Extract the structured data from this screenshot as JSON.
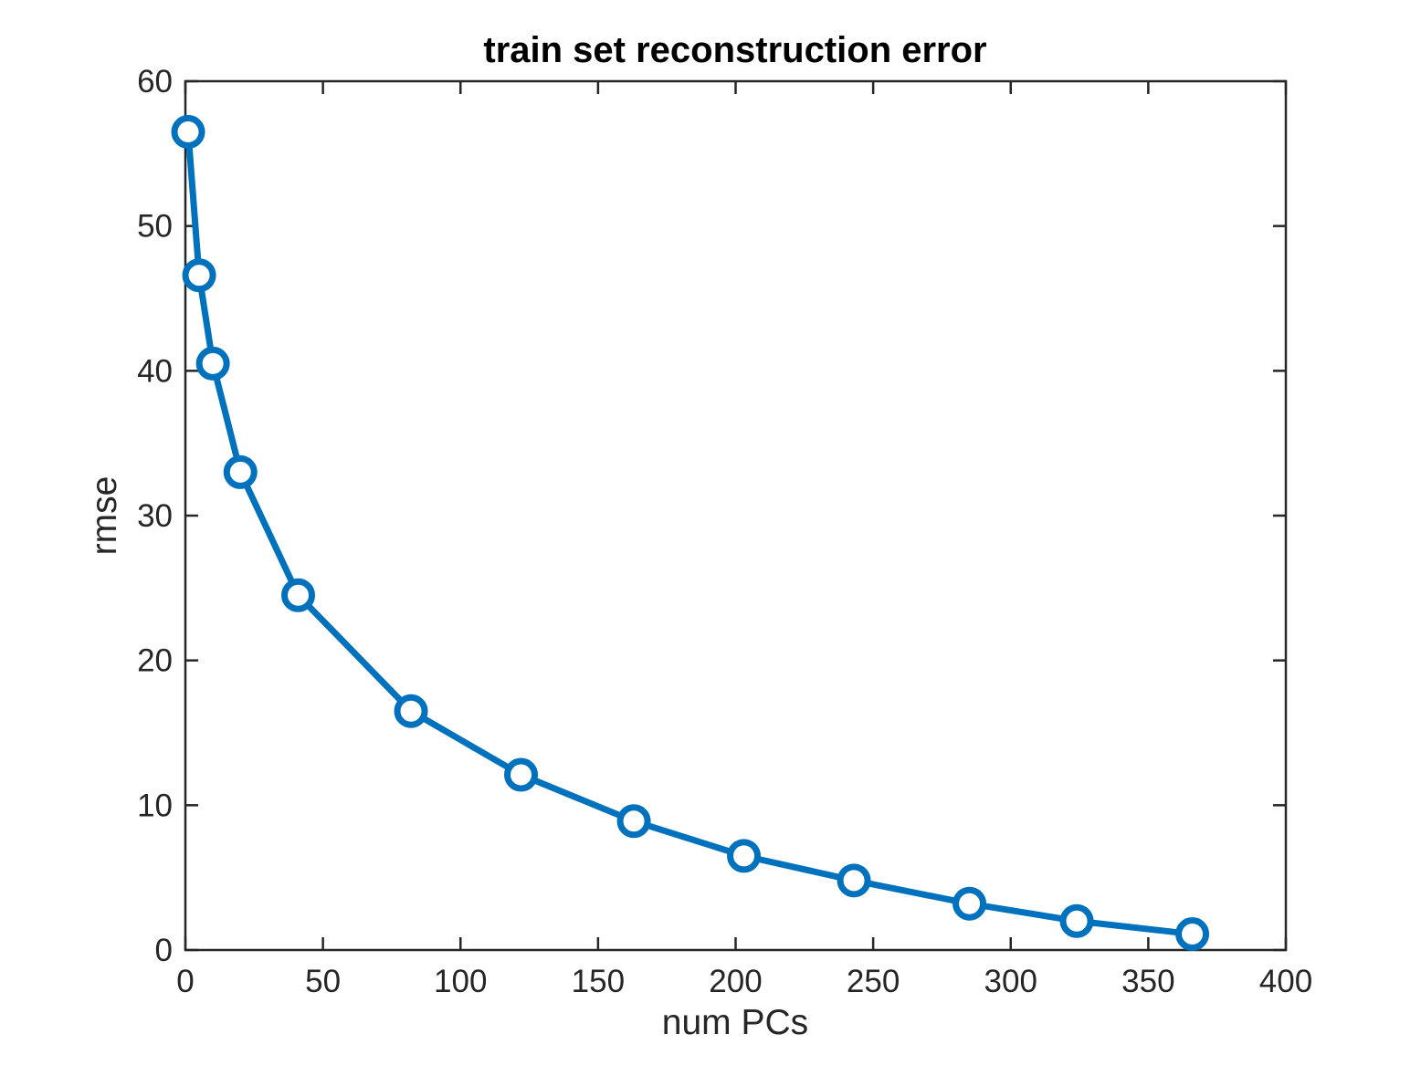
{
  "chart_data": {
    "type": "line",
    "title": "train set reconstruction error",
    "xlabel": "num PCs",
    "ylabel": "rmse",
    "xlim": [
      0,
      400
    ],
    "ylim": [
      0,
      60
    ],
    "xticks": [
      "0",
      "50",
      "100",
      "150",
      "200",
      "250",
      "300",
      "350",
      "400"
    ],
    "yticks": [
      "0",
      "10",
      "20",
      "30",
      "40",
      "50",
      "60"
    ],
    "grid": false,
    "legend": "none",
    "series_color": "#0072BD",
    "marker": "circle",
    "x": [
      1,
      5,
      10,
      20,
      41,
      82,
      122,
      163,
      203,
      243,
      285,
      324,
      366
    ],
    "y": [
      56.5,
      46.6,
      40.5,
      33.0,
      24.5,
      16.5,
      12.1,
      8.9,
      6.5,
      4.8,
      3.2,
      2.0,
      1.1
    ]
  }
}
